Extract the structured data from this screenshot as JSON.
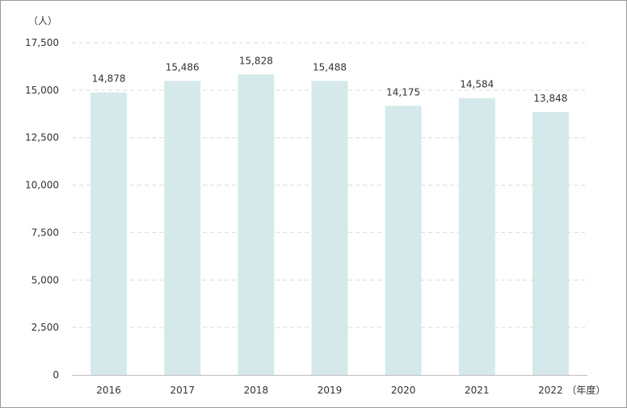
{
  "chart_data": {
    "type": "bar",
    "y_unit_label": "（人）",
    "x_unit_label": "（年度）",
    "categories": [
      "2016",
      "2017",
      "2018",
      "2019",
      "2020",
      "2021",
      "2022"
    ],
    "series": [
      {
        "values": [
          14878,
          15486,
          15828,
          15488,
          14175,
          14584,
          13848
        ]
      }
    ],
    "value_labels": [
      "14,878",
      "15,486",
      "15,828",
      "15,488",
      "14,175",
      "14,584",
      "13,848"
    ],
    "yticks": [
      0,
      2500,
      5000,
      7500,
      10000,
      12500,
      15000,
      17500
    ],
    "ytick_labels": [
      "0",
      "2,500",
      "5,000",
      "7,500",
      "10,000",
      "12,500",
      "15,000",
      "17,500"
    ],
    "ylim": [
      0,
      17500
    ],
    "grid": true,
    "legend": "none",
    "bar_color": "#d5e9ea",
    "grid_color": "#d9d9d9",
    "axis_color": "#bfbfbf"
  }
}
